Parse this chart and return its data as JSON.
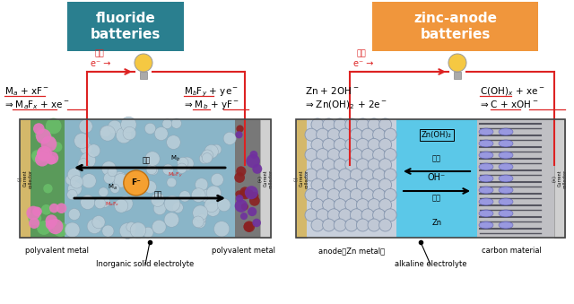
{
  "bg_color": "#ffffff",
  "left_title": "fluoride\nbatteries",
  "right_title": "zinc-anode\nbatteries",
  "left_title_bg": "#2a7f8f",
  "right_title_bg": "#f0963c",
  "title_text_color": "#ffffff",
  "discharge_label": "放電",
  "charge_label": "充電",
  "red_color": "#dd2222",
  "arrow_color": "#dd2222",
  "label_fluoride_left": "polyvalent metal",
  "label_fluoride_right": "polyvalent metal",
  "label_fluoride_center": "Inorganic solid electrolyte",
  "label_zinc_left": "anode（Zn metal）",
  "label_zinc_right": "carbon material",
  "label_zinc_center": "alkaline electrolyte",
  "current_collector_color": "#d4b86a",
  "collector_right_fl_color": "#d8d8d8",
  "collector_right_zn_color": "#d8d8d8"
}
